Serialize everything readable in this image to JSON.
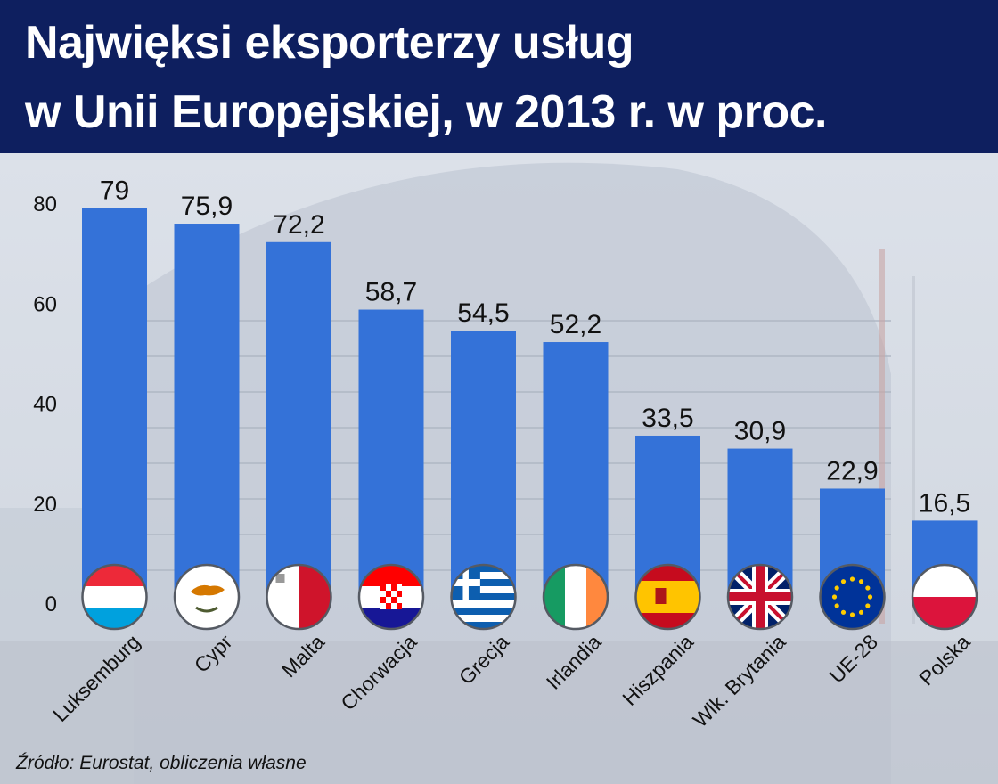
{
  "title": {
    "line1": "Najwięksi eksporterzy usług",
    "line2": "w Unii Europejskiej, w 2013 r. w proc."
  },
  "source": "Źródło: Eurostat, obliczenia własne",
  "colors": {
    "header": "#0e1f5f",
    "bar": "#3472d8",
    "text": "#111111"
  },
  "chart_data": {
    "type": "bar",
    "title": "Najwięksi eksporterzy usług w Unii Europejskiej, w 2013 r. w proc.",
    "xlabel": "",
    "ylabel": "",
    "ylim": [
      0,
      80
    ],
    "yticks": [
      0,
      20,
      40,
      60,
      80
    ],
    "categories": [
      "Luksemburg",
      "Cypr",
      "Malta",
      "Chorwacja",
      "Grecja",
      "Irlandia",
      "Hiszpania",
      "Wlk. Brytania",
      "UE-28",
      "Polska"
    ],
    "values": [
      79,
      75.9,
      72.2,
      58.7,
      54.5,
      52.2,
      33.5,
      30.9,
      22.9,
      16.5
    ],
    "value_labels": [
      "79",
      "75,9",
      "72,2",
      "58,7",
      "54,5",
      "52,2",
      "33,5",
      "30,9",
      "22,9",
      "16,5"
    ],
    "flags": [
      "luxembourg-flag",
      "cyprus-flag",
      "malta-flag",
      "croatia-flag",
      "greece-flag",
      "ireland-flag",
      "spain-flag",
      "uk-flag",
      "eu-flag",
      "poland-flag"
    ]
  }
}
